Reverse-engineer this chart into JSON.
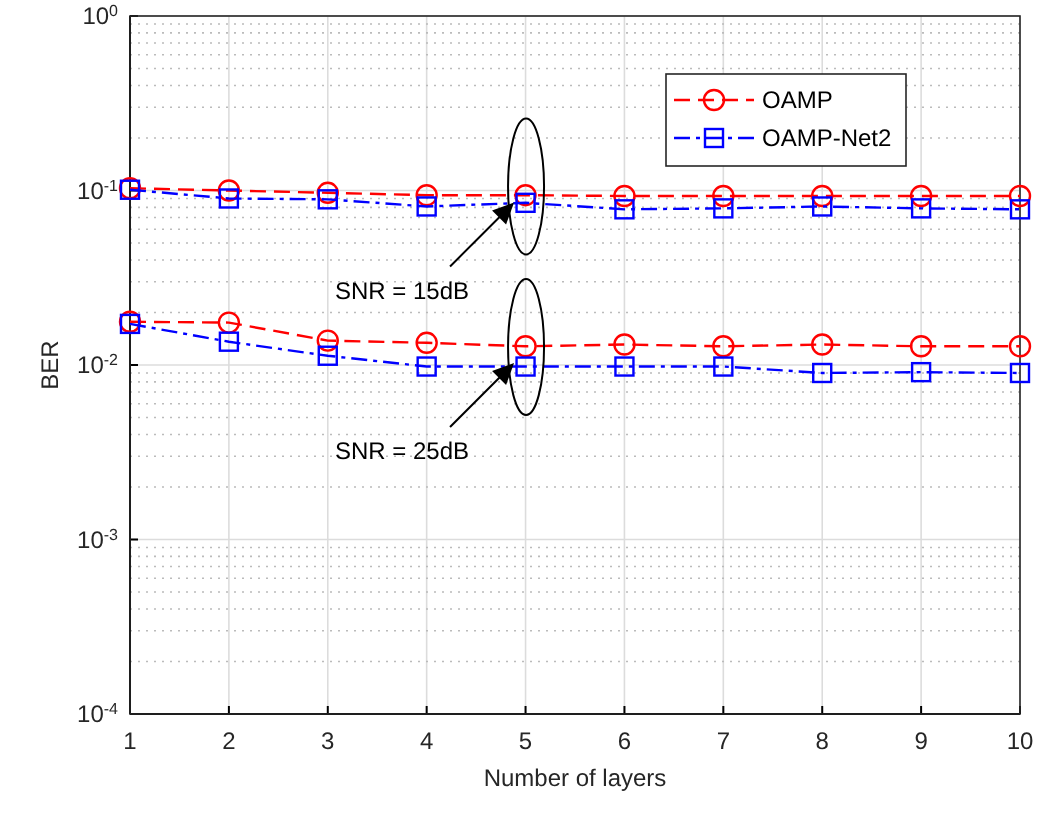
{
  "chart_data": {
    "type": "line",
    "xlabel": "Number of layers",
    "ylabel": "BER",
    "log": "y",
    "grid": true,
    "legend": "top right",
    "x": [
      1,
      2,
      3,
      4,
      5,
      6,
      7,
      8,
      9,
      10
    ],
    "xlim": [
      1,
      10
    ],
    "xticks": [
      1,
      2,
      3,
      4,
      5,
      6,
      7,
      8,
      9,
      10
    ],
    "ylim": [
      0.0001,
      1
    ],
    "yticks": [
      {
        "value": 0.0001,
        "label": "10$^{-4}$"
      },
      {
        "value": 0.001,
        "label": "10$^{-3}$"
      },
      {
        "value": 0.01,
        "label": "10$^{-2}$"
      },
      {
        "value": 0.1,
        "label": "10$^{-1}$"
      },
      {
        "value": 1,
        "label": "10$^{0}$"
      }
    ],
    "series": [
      {
        "name": "OAMP",
        "color": "#ff0000",
        "marker": "circle",
        "line_style": "dashed",
        "values": [
          0.103,
          0.1,
          0.097,
          0.094,
          0.094,
          0.093,
          0.093,
          0.093,
          0.093,
          0.093
        ]
      },
      {
        "name": "OAMP-Net2",
        "color": "#0000ff",
        "marker": "square",
        "line_style": "dashdot",
        "values": [
          0.101,
          0.09,
          0.089,
          0.081,
          0.085,
          0.078,
          0.079,
          0.081,
          0.079,
          0.078
        ]
      },
      {
        "color": "#ff0000",
        "marker": "circle",
        "line_style": "dashed",
        "values": [
          0.0177,
          0.0175,
          0.0138,
          0.0134,
          0.0128,
          0.0131,
          0.0128,
          0.0131,
          0.0128,
          0.0128
        ]
      },
      {
        "color": "#0000ff",
        "marker": "square",
        "line_style": "dashdot",
        "values": [
          0.0172,
          0.0136,
          0.0113,
          0.0098,
          0.0098,
          0.0098,
          0.0098,
          0.009,
          0.0091,
          0.009
        ]
      }
    ],
    "annotations": [
      "SNR = 15dB",
      "SNR = 25dB"
    ]
  }
}
